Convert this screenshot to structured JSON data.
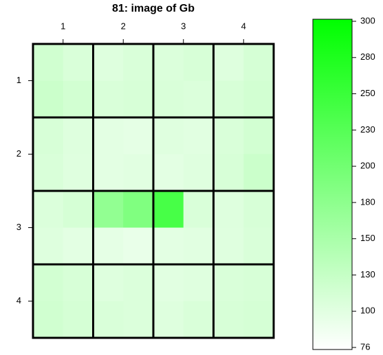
{
  "chart_data": {
    "type": "heatmap",
    "title": "81: image of Gb",
    "xlim": [
      0.5,
      4.5
    ],
    "xticks": [
      1,
      2,
      3,
      4
    ],
    "ylim": [
      4.5,
      0.5
    ],
    "yticks": [
      1,
      2,
      3,
      4
    ],
    "z": [
      [
        120,
        110,
        105,
        110,
        108,
        112,
        105,
        115
      ],
      [
        125,
        118,
        110,
        112,
        110,
        108,
        112,
        118
      ],
      [
        112,
        105,
        100,
        98,
        104,
        102,
        110,
        118
      ],
      [
        110,
        104,
        100,
        102,
        100,
        104,
        112,
        125
      ],
      [
        108,
        115,
        175,
        190,
        240,
        110,
        105,
        112
      ],
      [
        105,
        100,
        98,
        95,
        100,
        102,
        104,
        110
      ],
      [
        118,
        112,
        105,
        108,
        102,
        104,
        110,
        112
      ],
      [
        120,
        115,
        110,
        108,
        105,
        110,
        112,
        115
      ]
    ],
    "colorbar_ticks": [
      76,
      100,
      130,
      150,
      180,
      200,
      230,
      250,
      280,
      300
    ],
    "low_color": "#ffffff",
    "high_color": "#00ff00"
  }
}
